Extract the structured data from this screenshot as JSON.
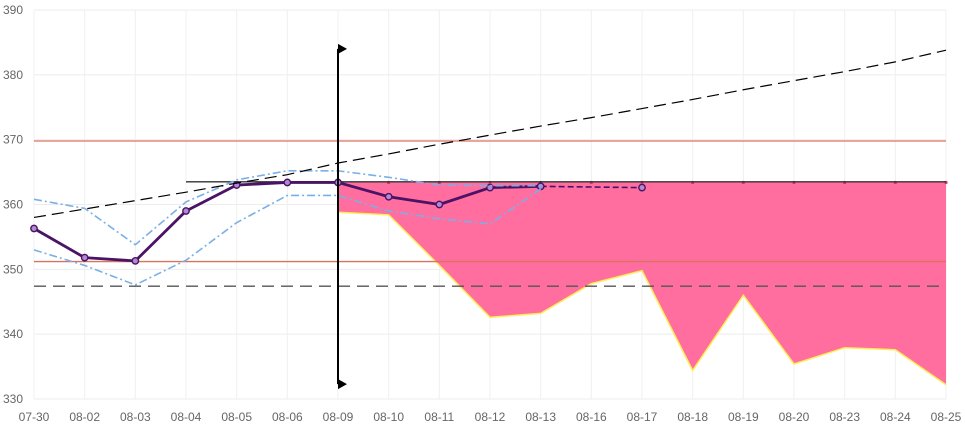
{
  "chart_data": {
    "type": "line",
    "categories": [
      "07-30",
      "08-02",
      "08-03",
      "08-04",
      "08-05",
      "08-06",
      "08-09",
      "08-10",
      "08-11",
      "08-12",
      "08-13",
      "08-16",
      "08-17",
      "08-18",
      "08-19",
      "08-20",
      "08-23",
      "08-24",
      "08-25"
    ],
    "ylim": [
      330,
      390
    ],
    "y_ticks": [
      "330",
      "340",
      "350",
      "360",
      "370",
      "380",
      "390"
    ],
    "grid": true,
    "legend": "none",
    "series": [
      {
        "values": [
          356.3,
          351.8,
          351.3,
          359.0,
          363.0,
          363.4,
          363.4,
          361.2,
          360.0,
          362.6,
          362.8,
          null,
          362.6,
          null,
          null,
          null,
          null,
          null,
          null
        ],
        "color": "#4a1366",
        "style": "solid-thick-markers"
      },
      {
        "values": [
          360.8,
          359.4,
          353.8,
          360.4,
          363.8,
          365.2,
          365.2,
          364.2,
          363.0,
          362.9,
          362.9,
          null,
          null,
          null,
          null,
          null,
          null,
          null,
          null
        ],
        "color": "#7ab0e6",
        "style": "dash-dot"
      },
      {
        "values": [
          353.0,
          350.6,
          347.6,
          351.4,
          357.2,
          361.4,
          361.4,
          359.0,
          357.8,
          357.0,
          362.4,
          null,
          null,
          null,
          null,
          null,
          null,
          null,
          null
        ],
        "color": "#7ab0e6",
        "style": "dash-dot"
      },
      {
        "values": [
          358.0,
          359.3,
          360.6,
          361.9,
          363.3,
          364.6,
          366.4,
          367.8,
          369.3,
          370.7,
          372.1,
          373.4,
          374.8,
          376.2,
          377.7,
          379.1,
          380.5,
          382.0,
          383.8
        ],
        "color": "#000000",
        "style": "dashed"
      }
    ],
    "band": {
      "upper": 363.4,
      "lower": [
        358.8,
        358.4,
        350.6,
        342.6,
        343.2,
        347.8,
        349.8,
        334.4,
        346.0,
        335.4,
        337.9,
        337.6,
        332.2
      ],
      "from_category": "08-09",
      "fill": "#ff6699",
      "edge": "#ffee55"
    },
    "horizontal_lines": [
      {
        "y": 369.8,
        "color": "#d9735f",
        "style": "solid"
      },
      {
        "y": 351.2,
        "color": "#d9735f",
        "style": "solid"
      },
      {
        "y": 347.4,
        "color": "#555555",
        "style": "dashed"
      },
      {
        "y": 363.5,
        "color": "#333333",
        "style": "solid",
        "from_category": "08-04"
      }
    ],
    "vertical_marker": {
      "category": "08-09",
      "y_top": 384.0,
      "y_bottom": 332.3,
      "color": "#000000"
    }
  }
}
